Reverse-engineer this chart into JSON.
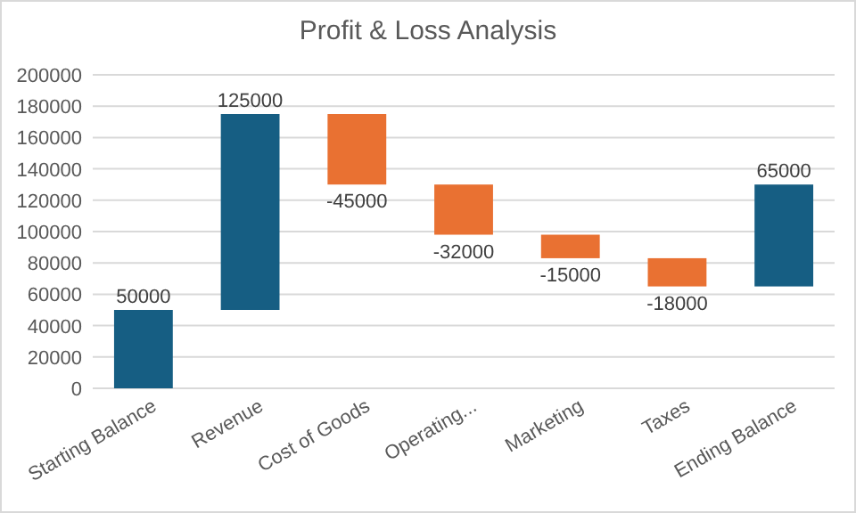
{
  "chart_data": {
    "type": "bar",
    "title": "Profit & Loss Analysis",
    "categories": [
      "Starting Balance",
      "Revenue",
      "Cost of Goods",
      "Operating...",
      "Marketing",
      "Taxes",
      "Ending Balance"
    ],
    "values": [
      50000,
      125000,
      -45000,
      -32000,
      -15000,
      -18000,
      65000
    ],
    "base": [
      0,
      50000,
      175000,
      130000,
      98000,
      83000,
      65000
    ],
    "colors": [
      "#165e83",
      "#165e83",
      "#e97132",
      "#e97132",
      "#e97132",
      "#e97132",
      "#165e83"
    ],
    "ylim": [
      0,
      200000
    ],
    "yticks": [
      0,
      20000,
      40000,
      60000,
      80000,
      100000,
      120000,
      140000,
      160000,
      180000,
      200000
    ],
    "grid": "y",
    "data_labels": true
  }
}
